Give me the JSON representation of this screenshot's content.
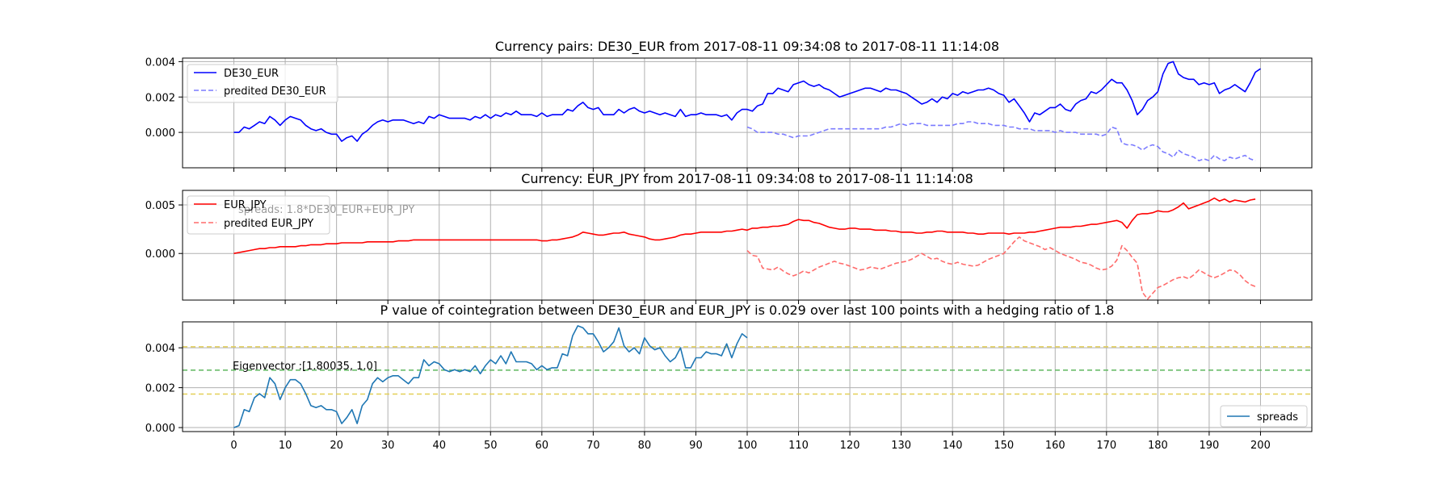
{
  "chart_data": [
    {
      "type": "line",
      "title": "Currency pairs: DE30_EUR from 2017-08-11 09:34:08 to 2017-08-11 11:14:08",
      "xlim": [
        -10,
        210
      ],
      "ylim": [
        -0.002,
        0.0042
      ],
      "yticks": [
        0,
        0.002,
        0.004
      ],
      "ytick_labels": [
        "0.000",
        "0.002",
        "0.004"
      ],
      "grid": true,
      "legend": "top-left",
      "series": [
        {
          "name": "DE30_EUR",
          "color": "#0000ff",
          "style": "solid",
          "x_start": 0,
          "values": [
            0.0,
            0.0,
            0.0003,
            0.0002,
            0.0004,
            0.0006,
            0.0005,
            0.0009,
            0.0007,
            0.0004,
            0.0007,
            0.0009,
            0.0008,
            0.0007,
            0.0004,
            0.0002,
            0.0001,
            0.0002,
            0.0,
            -0.0001,
            -0.0001,
            -0.0005,
            -0.0003,
            -0.0002,
            -0.0005,
            -0.0001,
            0.0001,
            0.0004,
            0.0006,
            0.0007,
            0.0006,
            0.0007,
            0.0007,
            0.0007,
            0.0006,
            0.0005,
            0.0006,
            0.0005,
            0.0009,
            0.0008,
            0.001,
            0.0009,
            0.0008,
            0.0008,
            0.0008,
            0.0008,
            0.0007,
            0.0009,
            0.0008,
            0.001,
            0.0008,
            0.001,
            0.0009,
            0.0011,
            0.001,
            0.0012,
            0.001,
            0.001,
            0.001,
            0.0009,
            0.0011,
            0.0009,
            0.001,
            0.001,
            0.001,
            0.0013,
            0.0012,
            0.0015,
            0.0017,
            0.0014,
            0.0013,
            0.0014,
            0.001,
            0.001,
            0.001,
            0.0013,
            0.0011,
            0.0013,
            0.0014,
            0.0012,
            0.0011,
            0.0012,
            0.0011,
            0.001,
            0.0011,
            0.001,
            0.0009,
            0.0013,
            0.0009,
            0.001,
            0.001,
            0.0011,
            0.001,
            0.001,
            0.001,
            0.0009,
            0.001,
            0.0007,
            0.0011,
            0.0013,
            0.0013,
            0.0012,
            0.0015,
            0.0016,
            0.0022,
            0.0022,
            0.0025,
            0.0024,
            0.0023,
            0.0027,
            0.0028,
            0.0029,
            0.0027,
            0.0026,
            0.0027,
            0.0025,
            0.0024,
            0.0022,
            0.002,
            0.0021,
            0.0022,
            0.0023,
            0.0024,
            0.0025,
            0.0025,
            0.0024,
            0.0023,
            0.0025,
            0.0024,
            0.0024,
            0.0023,
            0.0022,
            0.002,
            0.0018,
            0.0016,
            0.0017,
            0.0019,
            0.0017,
            0.002,
            0.0019,
            0.0022,
            0.0021,
            0.0023,
            0.0022,
            0.0023,
            0.0024,
            0.0024,
            0.0025,
            0.0024,
            0.0022,
            0.0021,
            0.0017,
            0.0019,
            0.0015,
            0.0011,
            0.0006,
            0.0011,
            0.001,
            0.0012,
            0.0014,
            0.0014,
            0.0016,
            0.0013,
            0.0012,
            0.0016,
            0.0018,
            0.0019,
            0.0023,
            0.0022,
            0.0024,
            0.0027,
            0.003,
            0.0028,
            0.0028,
            0.0024,
            0.0018,
            0.001,
            0.0013,
            0.0018,
            0.002,
            0.0023,
            0.0033,
            0.0039,
            0.004,
            0.0033,
            0.0031,
            0.003,
            0.003,
            0.0027,
            0.0028,
            0.0027,
            0.0028,
            0.0022,
            0.0024,
            0.0025,
            0.0027,
            0.0025,
            0.0023,
            0.0028,
            0.0034,
            0.0036
          ]
        },
        {
          "name": "predited DE30_EUR",
          "color": "#7b7bff",
          "style": "dashed",
          "x_start": 100,
          "values": [
            0.0003,
            0.0002,
            0.0,
            0.0,
            0.0,
            0.0,
            -0.0001,
            -0.0001,
            -0.0002,
            -0.0003,
            -0.0002,
            -0.0002,
            -0.0002,
            -0.0001,
            0.0,
            0.0001,
            0.0002,
            0.0002,
            0.0002,
            0.0002,
            0.0002,
            0.0002,
            0.0002,
            0.0002,
            0.0002,
            0.0002,
            0.0002,
            0.0003,
            0.0003,
            0.0004,
            0.0005,
            0.0004,
            0.0005,
            0.0005,
            0.0005,
            0.0004,
            0.0004,
            0.0004,
            0.0004,
            0.0004,
            0.0004,
            0.0005,
            0.0005,
            0.0006,
            0.0006,
            0.0005,
            0.0005,
            0.0005,
            0.0004,
            0.0004,
            0.0004,
            0.0003,
            0.0003,
            0.0002,
            0.0002,
            0.0002,
            0.0001,
            0.0001,
            0.0001,
            0.0001,
            0.0,
            0.0001,
            0.0,
            0.0,
            0.0,
            -0.0001,
            -0.0001,
            -0.0001,
            -0.0001,
            -0.0002,
            -0.0001,
            0.0003,
            0.0002,
            -0.0006,
            -0.0007,
            -0.0007,
            -0.0008,
            -0.001,
            -0.0008,
            -0.0007,
            -0.0008,
            -0.0011,
            -0.0012,
            -0.0014,
            -0.001,
            -0.0012,
            -0.0013,
            -0.0014,
            -0.0016,
            -0.0015,
            -0.0016,
            -0.0013,
            -0.0015,
            -0.0016,
            -0.0014,
            -0.0015,
            -0.0014,
            -0.0013,
            -0.0015,
            -0.0016
          ]
        }
      ]
    },
    {
      "type": "line",
      "title": "Currency: EUR_JPY from 2017-08-11 09:34:08 to 2017-08-11 11:14:08",
      "xlim": [
        -10,
        210
      ],
      "ylim": [
        -0.0048,
        0.0065
      ],
      "yticks": [
        0,
        0.005
      ],
      "ytick_labels": [
        "0.000",
        "0.005"
      ],
      "grid": true,
      "legend": "top-left",
      "annotation": "spreads: 1.8*DE30_EUR+EUR_JPY",
      "series": [
        {
          "name": "EUR_JPY",
          "color": "#ff0000",
          "style": "solid",
          "x_start": 0,
          "values": [
            0.0,
            0.0001,
            0.0002,
            0.0003,
            0.0004,
            0.0005,
            0.0005,
            0.0006,
            0.0006,
            0.0007,
            0.0007,
            0.0007,
            0.0007,
            0.0008,
            0.0008,
            0.0009,
            0.0009,
            0.0009,
            0.001,
            0.001,
            0.001,
            0.0011,
            0.0011,
            0.0011,
            0.0011,
            0.0011,
            0.0012,
            0.0012,
            0.0012,
            0.0012,
            0.0012,
            0.0012,
            0.0013,
            0.0013,
            0.0013,
            0.0014,
            0.0014,
            0.0014,
            0.0014,
            0.0014,
            0.0014,
            0.0014,
            0.0014,
            0.0014,
            0.0014,
            0.0014,
            0.0014,
            0.0014,
            0.0014,
            0.0014,
            0.0014,
            0.0014,
            0.0014,
            0.0014,
            0.0014,
            0.0014,
            0.0014,
            0.0014,
            0.0014,
            0.0014,
            0.0013,
            0.0013,
            0.0014,
            0.0014,
            0.0015,
            0.0016,
            0.0017,
            0.0019,
            0.0022,
            0.0021,
            0.002,
            0.0019,
            0.0019,
            0.002,
            0.0021,
            0.0021,
            0.0022,
            0.002,
            0.0019,
            0.0018,
            0.0017,
            0.0015,
            0.0014,
            0.0014,
            0.0015,
            0.0016,
            0.0017,
            0.0019,
            0.002,
            0.002,
            0.0021,
            0.0022,
            0.0022,
            0.0022,
            0.0022,
            0.0022,
            0.0023,
            0.0023,
            0.0024,
            0.0025,
            0.0024,
            0.0026,
            0.0026,
            0.0027,
            0.0027,
            0.0028,
            0.0028,
            0.0029,
            0.003,
            0.0033,
            0.0035,
            0.0034,
            0.0034,
            0.0032,
            0.0031,
            0.0029,
            0.0027,
            0.0026,
            0.0025,
            0.0025,
            0.0026,
            0.0026,
            0.0025,
            0.0025,
            0.0025,
            0.0024,
            0.0024,
            0.0024,
            0.0023,
            0.0023,
            0.0022,
            0.0022,
            0.0022,
            0.0021,
            0.0021,
            0.0022,
            0.0022,
            0.0023,
            0.0023,
            0.0022,
            0.0022,
            0.0022,
            0.0022,
            0.0021,
            0.0021,
            0.002,
            0.002,
            0.0021,
            0.0021,
            0.0021,
            0.0021,
            0.002,
            0.0021,
            0.0021,
            0.0021,
            0.0022,
            0.0022,
            0.0023,
            0.0024,
            0.0025,
            0.0026,
            0.0027,
            0.0027,
            0.0027,
            0.0028,
            0.0028,
            0.0029,
            0.003,
            0.003,
            0.0031,
            0.0032,
            0.0033,
            0.0034,
            0.0032,
            0.0026,
            0.0034,
            0.004,
            0.0041,
            0.0041,
            0.0042,
            0.0044,
            0.0043,
            0.0043,
            0.0045,
            0.0048,
            0.0052,
            0.0046,
            0.0048,
            0.005,
            0.0052,
            0.0054,
            0.0057,
            0.0054,
            0.0056,
            0.0053,
            0.0055,
            0.0054,
            0.0053,
            0.0055,
            0.0056
          ]
        },
        {
          "name": "predited EUR_JPY",
          "color": "#ff6b6b",
          "style": "dashed",
          "x_start": 100,
          "values": [
            0.0003,
            -0.0002,
            -0.0003,
            -0.0015,
            -0.0016,
            -0.0017,
            -0.0014,
            -0.0018,
            -0.0021,
            -0.0023,
            -0.0021,
            -0.0018,
            -0.002,
            -0.0017,
            -0.0014,
            -0.0012,
            -0.001,
            -0.0008,
            -0.001,
            -0.0011,
            -0.0013,
            -0.0015,
            -0.0017,
            -0.0016,
            -0.0014,
            -0.0015,
            -0.0016,
            -0.0014,
            -0.0012,
            -0.001,
            -0.0009,
            -0.0008,
            -0.0006,
            -0.0003,
            0.0,
            -0.0003,
            -0.0006,
            -0.0005,
            -0.0008,
            -0.001,
            -0.0011,
            -0.0009,
            -0.0011,
            -0.0012,
            -0.0013,
            -0.0012,
            -0.0009,
            -0.0006,
            -0.0004,
            -0.0002,
            0.0,
            0.0006,
            0.0012,
            0.0017,
            0.0013,
            0.0011,
            0.0009,
            0.0007,
            0.0004,
            0.0006,
            0.0003,
            0.0,
            -0.0002,
            -0.0004,
            -0.0006,
            -0.0009,
            -0.001,
            -0.0012,
            -0.0015,
            -0.0017,
            -0.0016,
            -0.0013,
            -0.0007,
            0.0008,
            0.0003,
            -0.0004,
            -0.001,
            -0.004,
            -0.0047,
            -0.0041,
            -0.0035,
            -0.0033,
            -0.003,
            -0.0027,
            -0.0025,
            -0.0024,
            -0.0026,
            -0.0022,
            -0.0017,
            -0.002,
            -0.0023,
            -0.0025,
            -0.0023,
            -0.002,
            -0.0017,
            -0.0018,
            -0.0022,
            -0.0028,
            -0.0032,
            -0.0034
          ]
        }
      ]
    },
    {
      "type": "line",
      "title": "P value of cointegration between DE30_EUR and EUR_JPY is 0.029 over last 100 points with a hedging ratio of 1.8",
      "xlim": [
        -10,
        210
      ],
      "ylim": [
        -0.0002,
        0.0053
      ],
      "yticks": [
        0,
        0.002,
        0.004
      ],
      "ytick_labels": [
        "0.000",
        "0.002",
        "0.004"
      ],
      "xticks": [
        0,
        10,
        20,
        30,
        40,
        50,
        60,
        70,
        80,
        90,
        100,
        110,
        120,
        130,
        140,
        150,
        160,
        170,
        180,
        190,
        200
      ],
      "xtick_labels": [
        "0",
        "10",
        "20",
        "30",
        "40",
        "50",
        "60",
        "70",
        "80",
        "90",
        "100",
        "110",
        "120",
        "130",
        "140",
        "150",
        "160",
        "170",
        "180",
        "190",
        "200"
      ],
      "grid": true,
      "legend": "bottom-right",
      "annotation": "Eigenvector :[1.80035, 1.0]",
      "hlines": [
        {
          "y": 0.00405,
          "color": "#e3cf57"
        },
        {
          "y": 0.00288,
          "color": "#5fb85f"
        },
        {
          "y": 0.00168,
          "color": "#e3cf57"
        }
      ],
      "series": [
        {
          "name": "spreads",
          "color": "#1f77b4",
          "style": "solid",
          "x_start": 0,
          "values": [
            0.0,
            0.0001,
            0.0009,
            0.0008,
            0.0015,
            0.0017,
            0.0015,
            0.0025,
            0.0022,
            0.0014,
            0.002,
            0.0024,
            0.0024,
            0.0022,
            0.0017,
            0.0011,
            0.001,
            0.0011,
            0.0009,
            0.0009,
            0.0008,
            0.0002,
            0.0005,
            0.0009,
            0.0002,
            0.0011,
            0.0014,
            0.0022,
            0.0025,
            0.0023,
            0.0025,
            0.0026,
            0.0026,
            0.0024,
            0.0022,
            0.0025,
            0.0025,
            0.0034,
            0.0031,
            0.0033,
            0.0032,
            0.0029,
            0.0028,
            0.0029,
            0.0028,
            0.0029,
            0.0028,
            0.0031,
            0.0027,
            0.0031,
            0.0034,
            0.0032,
            0.0036,
            0.0032,
            0.0038,
            0.0033,
            0.0033,
            0.0033,
            0.0032,
            0.0029,
            0.0031,
            0.0029,
            0.003,
            0.003,
            0.0037,
            0.0036,
            0.0046,
            0.0051,
            0.005,
            0.0047,
            0.0047,
            0.0043,
            0.0038,
            0.004,
            0.0043,
            0.005,
            0.0041,
            0.0038,
            0.004,
            0.0037,
            0.0045,
            0.0041,
            0.0039,
            0.004,
            0.0036,
            0.0033,
            0.0035,
            0.004,
            0.003,
            0.003,
            0.0035,
            0.0035,
            0.0038,
            0.0037,
            0.0037,
            0.0036,
            0.0042,
            0.0035,
            0.0042,
            0.0047,
            0.0045
          ]
        }
      ]
    }
  ]
}
